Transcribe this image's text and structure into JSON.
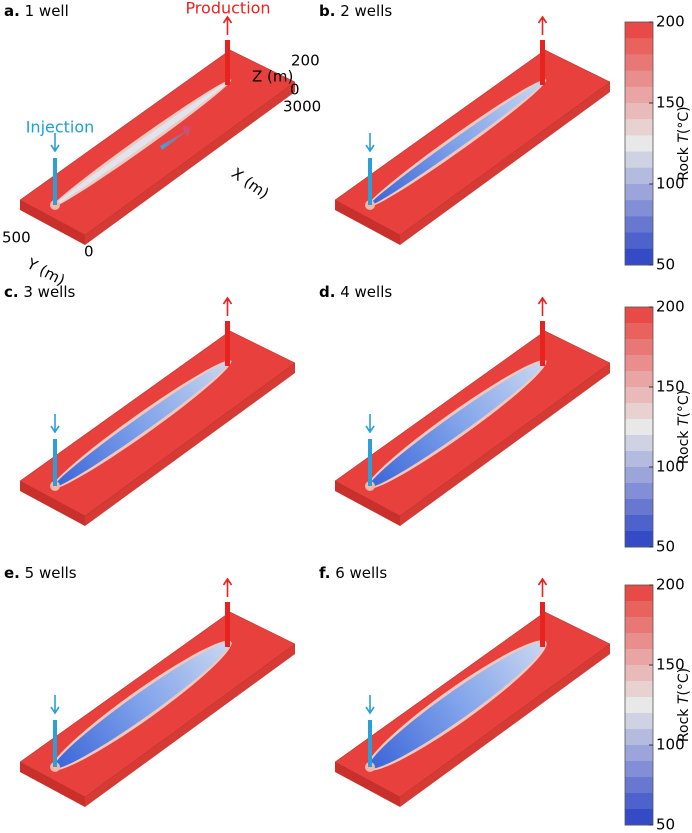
{
  "panels": [
    {
      "letter": "a.",
      "title": "1 well"
    },
    {
      "letter": "b.",
      "title": "2 wells"
    },
    {
      "letter": "c.",
      "title": "3 wells"
    },
    {
      "letter": "d.",
      "title": "4 wells"
    },
    {
      "letter": "e.",
      "title": "5 wells"
    },
    {
      "letter": "f.",
      "title": "6 wells"
    }
  ],
  "annotations": {
    "production": "Production",
    "injection": "Injection",
    "z_top": "200",
    "z_label": "Z (m)",
    "z_bottom": "0",
    "x_end": "3000",
    "x_label": "X (m)",
    "y_end": "500",
    "y_label": "Y (m)",
    "y_origin": "0"
  },
  "colorbars": [
    {
      "ticks": [
        200,
        150,
        100,
        50
      ],
      "label": "Rock",
      "variable": "T",
      "unit": "(°C)"
    },
    {
      "ticks": [
        200,
        150,
        100,
        50
      ],
      "label": "Rock",
      "variable": "T",
      "unit": "(°C)"
    },
    {
      "ticks": [
        200,
        150,
        100,
        50
      ],
      "label": "Rock",
      "variable": "T",
      "unit": "(°C)"
    }
  ]
}
